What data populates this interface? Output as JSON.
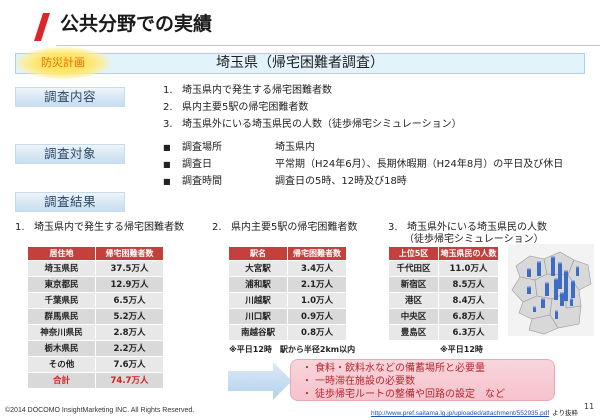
{
  "title": "公共分野での実績",
  "banner": {
    "tag": "防災計画",
    "heading": "埼玉県（帰宅困難者調査）"
  },
  "survey_content": {
    "label": "調査内容",
    "items": [
      {
        "num": "1.",
        "text": "埼玉県内で発生する帰宅困難者数"
      },
      {
        "num": "2.",
        "text": "県内主要5駅の帰宅困難者数"
      },
      {
        "num": "3.",
        "text": "埼玉県外にいる埼玉県民の人数（徒歩帰宅シミュレーション）"
      }
    ]
  },
  "survey_target": {
    "label": "調査対象",
    "items": [
      {
        "bullet": "■",
        "key": "調査場所",
        "value": "埼玉県内"
      },
      {
        "bullet": "■",
        "key": "調査日",
        "value": "平常期（H24年6月）、長期休暇期（H24年8月）の平日及び休日"
      },
      {
        "bullet": "■",
        "key": "調査時間",
        "value": "調査日の5時、12時及び18時"
      }
    ]
  },
  "survey_results": {
    "label": "調査結果",
    "residence_table": {
      "num": "1.",
      "heading": "埼玉県内で発生する帰宅困難者数",
      "columns": [
        "居住地",
        "帰宅困難者数"
      ],
      "rows": [
        [
          "埼玉県民",
          "37.5万人"
        ],
        [
          "東京都民",
          "12.9万人"
        ],
        [
          "千葉県民",
          "6.5万人"
        ],
        [
          "群馬県民",
          "5.2万人"
        ],
        [
          "神奈川県民",
          "2.8万人"
        ],
        [
          "栃木県民",
          "2.2万人"
        ],
        [
          "その他",
          "7.6万人"
        ]
      ],
      "total": {
        "label": "合計",
        "value": "74.7万人"
      }
    },
    "station_table": {
      "num": "2.",
      "heading": "県内主要5駅の帰宅困難者数",
      "columns": [
        "駅名",
        "帰宅困難者数"
      ],
      "rows": [
        [
          "大宮駅",
          "3.4万人"
        ],
        [
          "浦和駅",
          "2.1万人"
        ],
        [
          "川越駅",
          "1.0万人"
        ],
        [
          "川口駅",
          "0.9万人"
        ],
        [
          "南越谷駅",
          "0.8万人"
        ]
      ],
      "note": "※平日12時　駅から半径2km以内"
    },
    "outside_table": {
      "num": "3.",
      "heading": "埼玉県外にいる埼玉県民の人数",
      "subheading": "（徒歩帰宅シミュレーション）",
      "columns": [
        "上位5区",
        "埼玉県民の人数"
      ],
      "rows": [
        [
          "千代田区",
          "11.0万人"
        ],
        [
          "新宿区",
          "8.5万人"
        ],
        [
          "港区",
          "8.4万人"
        ],
        [
          "中央区",
          "6.8万人"
        ],
        [
          "豊島区",
          "6.3万人"
        ]
      ],
      "note": "※平日12時"
    }
  },
  "conclusion": {
    "bullet": "・",
    "items": [
      "食料・飲料水などの備蓄場所と必要量",
      "一時滞在施設の必要数",
      "徒歩帰宅ルートの整備や回路の設定　など"
    ]
  },
  "footer": {
    "copyright": "©2014 DOCOMO InsightMarketing INC. All Rights Reserved.",
    "source_url": "http://www.pref.saitama.lg.jp/uploaded/attachment/552935.pdf",
    "source_suffix": "より抜粋",
    "page_number": "11"
  },
  "colors": {
    "title_accent": "#d9262a",
    "banner_tag_text": "#e46c0a",
    "section_label_text": "#2d4a66",
    "table_header": "#c4403c",
    "total_text": "#d42020",
    "conclusion_text": "#b5262e",
    "conclusion_fill": "#f6c3cd",
    "arrow_fill": "#b4d1ec",
    "link": "#1f4fbf"
  },
  "icons": {
    "title_accent": "red-slash-accent-icon",
    "result_arrow": "arrow-right-icon",
    "ward_map": "tokyo-ward-map-image"
  }
}
